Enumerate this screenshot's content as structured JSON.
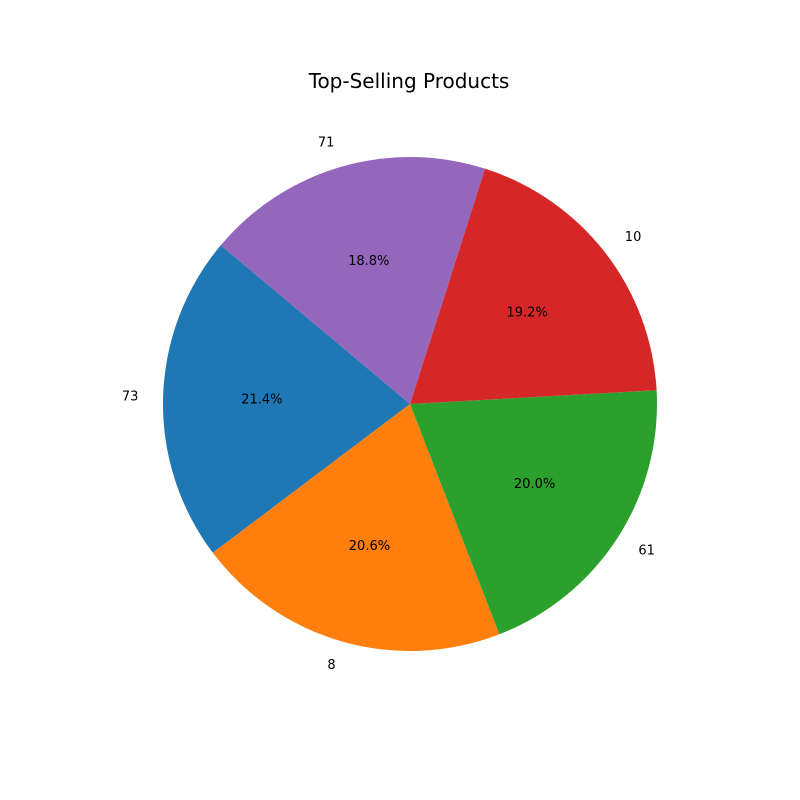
{
  "chart_data": {
    "type": "pie",
    "title": "Top-Selling Products",
    "categories": [
      "73",
      "8",
      "61",
      "10",
      "71"
    ],
    "values": [
      21.4,
      20.6,
      20.0,
      19.2,
      18.8
    ],
    "percent_labels": [
      "21.4%",
      "20.6%",
      "20.0%",
      "19.2%",
      "18.8%"
    ],
    "colors": [
      "#1f77b4",
      "#ff7f0e",
      "#2ca02c",
      "#d62728",
      "#9467bd"
    ],
    "start_angle_deg": 140,
    "direction": "counterclockwise",
    "legend": "none"
  }
}
